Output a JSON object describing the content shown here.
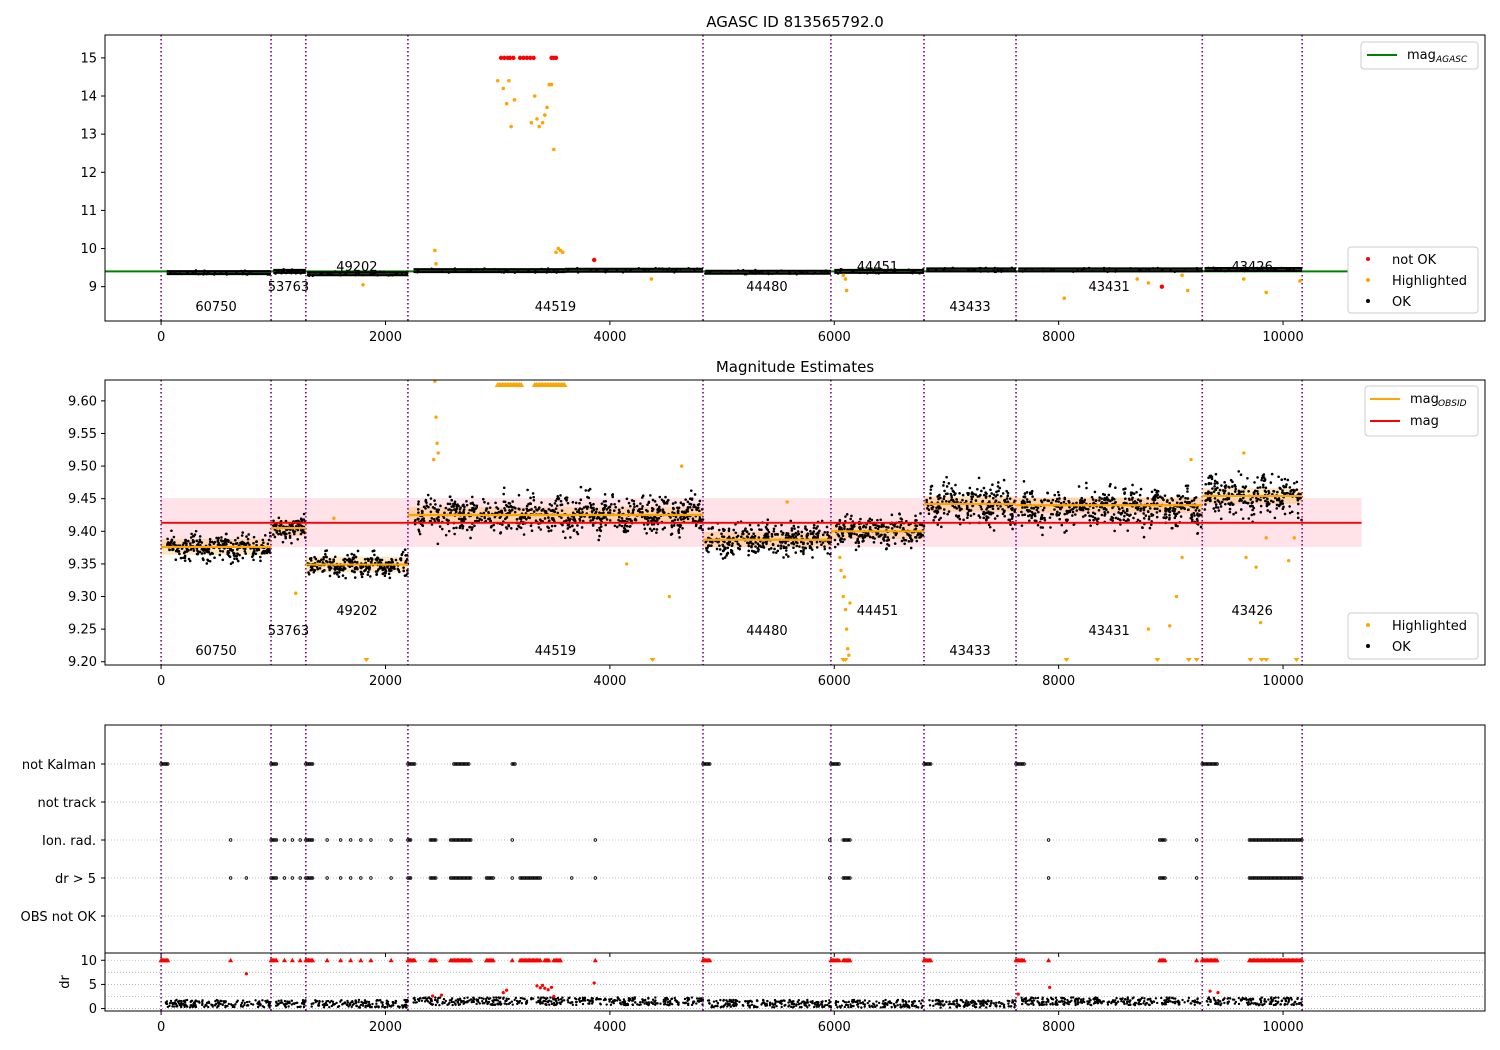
{
  "colors": {
    "obs_line": "#800080",
    "agasc_line": "#008000",
    "not_ok": "#ff0000",
    "highlighted": "#ffa500",
    "ok": "#000000",
    "mag_line": "#ff0000",
    "mag_band": "#ffc0cb",
    "mag_obsid": "#ffa500",
    "grid": "#b0b0b0"
  },
  "obs_boundaries": [
    0,
    980,
    1290,
    2200,
    4830,
    5970,
    6800,
    7620,
    9280,
    10170
  ],
  "obsids": [
    {
      "id": "60750",
      "x": 490,
      "row": 2
    },
    {
      "id": "53763",
      "x": 1135,
      "row": 1
    },
    {
      "id": "49202",
      "x": 1745,
      "row": 0
    },
    {
      "id": "44519",
      "x": 3515,
      "row": 2
    },
    {
      "id": "44480",
      "x": 5400,
      "row": 1
    },
    {
      "id": "44451",
      "x": 6385,
      "row": 0
    },
    {
      "id": "43433",
      "x": 7210,
      "row": 2
    },
    {
      "id": "43431",
      "x": 8450,
      "row": 1
    },
    {
      "id": "43426",
      "x": 9725,
      "row": 0
    }
  ],
  "chart_data": [
    {
      "type": "scatter",
      "title": "AGASC ID 813565792.0",
      "xlim": [
        -500,
        11800
      ],
      "ylim": [
        8.1,
        15.6
      ],
      "xticks": [
        "0",
        "2000",
        "4000",
        "6000",
        "8000",
        "10000"
      ],
      "xtick_values": [
        0,
        2000,
        4000,
        6000,
        8000,
        10000
      ],
      "yticks": [
        "9",
        "10",
        "11",
        "12",
        "13",
        "14",
        "15"
      ],
      "ytick_values": [
        9,
        10,
        11,
        12,
        13,
        14,
        15
      ],
      "mag_agasc": 9.4,
      "legend_lines": [
        {
          "label": "mag",
          "sub": "AGASC",
          "color": "#008000"
        }
      ],
      "legend_markers": [
        {
          "label": "not OK",
          "color": "#ff0000"
        },
        {
          "label": "Highlighted",
          "color": "#ffa500"
        },
        {
          "label": "OK",
          "color": "#000000"
        }
      ],
      "segments": [
        {
          "x0": 50,
          "x1": 980,
          "y": 9.37
        },
        {
          "x0": 1000,
          "x1": 1290,
          "y": 9.4
        },
        {
          "x0": 1300,
          "x1": 2200,
          "y": 9.34
        },
        {
          "x0": 2250,
          "x1": 3600,
          "y": 9.42
        },
        {
          "x0": 3600,
          "x1": 4830,
          "y": 9.43
        },
        {
          "x0": 4850,
          "x1": 5970,
          "y": 9.38
        },
        {
          "x0": 6000,
          "x1": 6800,
          "y": 9.4
        },
        {
          "x0": 6820,
          "x1": 7620,
          "y": 9.44
        },
        {
          "x0": 7640,
          "x1": 9280,
          "y": 9.44
        },
        {
          "x0": 9300,
          "x1": 10170,
          "y": 9.45
        }
      ],
      "highlighted_points": [
        [
          3000,
          14.4
        ],
        [
          3050,
          14.2
        ],
        [
          3080,
          13.8
        ],
        [
          3100,
          14.4
        ],
        [
          3120,
          13.2
        ],
        [
          3150,
          13.9
        ],
        [
          3300,
          13.3
        ],
        [
          3330,
          14.0
        ],
        [
          3350,
          13.4
        ],
        [
          3370,
          13.2
        ],
        [
          3400,
          13.3
        ],
        [
          3420,
          13.5
        ],
        [
          3440,
          13.7
        ],
        [
          3460,
          14.3
        ],
        [
          3480,
          14.3
        ],
        [
          3500,
          12.6
        ],
        [
          3520,
          9.9
        ],
        [
          3540,
          10.0
        ],
        [
          3560,
          9.95
        ],
        [
          3580,
          9.9
        ],
        [
          2440,
          9.95
        ],
        [
          2450,
          9.6
        ],
        [
          1800,
          9.05
        ],
        [
          6080,
          9.3
        ],
        [
          6100,
          9.2
        ],
        [
          6110,
          8.9
        ],
        [
          4370,
          9.2
        ],
        [
          8050,
          8.7
        ],
        [
          8700,
          9.2
        ],
        [
          8800,
          9.1
        ],
        [
          9100,
          9.3
        ],
        [
          9150,
          8.9
        ],
        [
          9650,
          9.2
        ],
        [
          9850,
          8.85
        ],
        [
          10150,
          9.15
        ]
      ],
      "notok_points": [
        [
          3030,
          15.0
        ],
        [
          3060,
          15.0
        ],
        [
          3090,
          15.0
        ],
        [
          3110,
          15.0
        ],
        [
          3140,
          15.0
        ],
        [
          3200,
          15.0
        ],
        [
          3230,
          15.0
        ],
        [
          3260,
          15.0
        ],
        [
          3290,
          15.0
        ],
        [
          3320,
          15.0
        ],
        [
          3480,
          15.0
        ],
        [
          3500,
          15.0
        ],
        [
          3520,
          15.0
        ],
        [
          3860,
          9.7
        ],
        [
          8920,
          9.0
        ]
      ]
    },
    {
      "type": "scatter",
      "title": "Magnitude Estimates",
      "xlim": [
        -500,
        11800
      ],
      "ylim": [
        9.195,
        9.632
      ],
      "xticks": [
        "0",
        "2000",
        "4000",
        "6000",
        "8000",
        "10000"
      ],
      "xtick_values": [
        0,
        2000,
        4000,
        6000,
        8000,
        10000
      ],
      "yticks": [
        "9.20",
        "9.25",
        "9.30",
        "9.35",
        "9.40",
        "9.45",
        "9.50",
        "9.55",
        "9.60"
      ],
      "ytick_values": [
        9.2,
        9.25,
        9.3,
        9.35,
        9.4,
        9.45,
        9.5,
        9.55,
        9.6
      ],
      "mag": 9.413,
      "mag_band": [
        9.376,
        9.451
      ],
      "mag_xrange": [
        0,
        10700
      ],
      "legend_lines": [
        {
          "label": "mag",
          "sub": "OBSID",
          "color": "#ffa500"
        },
        {
          "label": "mag",
          "sub": "",
          "color": "#ff0000"
        }
      ],
      "legend_markers": [
        {
          "label": "Highlighted",
          "color": "#ffa500"
        },
        {
          "label": "OK",
          "color": "#000000"
        }
      ],
      "segments": [
        {
          "x0": 0,
          "x1": 980,
          "y": 9.376
        },
        {
          "x0": 980,
          "x1": 1290,
          "y": 9.405
        },
        {
          "x0": 1290,
          "x1": 2200,
          "y": 9.349
        },
        {
          "x0": 2200,
          "x1": 4830,
          "y": 9.425
        },
        {
          "x0": 4830,
          "x1": 5970,
          "y": 9.387
        },
        {
          "x0": 5970,
          "x1": 6800,
          "y": 9.4
        },
        {
          "x0": 6800,
          "x1": 7620,
          "y": 9.442
        },
        {
          "x0": 7620,
          "x1": 9280,
          "y": 9.44
        },
        {
          "x0": 9280,
          "x1": 10170,
          "y": 9.454
        }
      ],
      "highlighted_points": [
        [
          2440,
          9.63
        ],
        [
          2450,
          9.575
        ],
        [
          2460,
          9.535
        ],
        [
          2470,
          9.52
        ],
        [
          2430,
          9.51
        ],
        [
          4150,
          9.35
        ],
        [
          4530,
          9.3
        ],
        [
          4640,
          9.5
        ],
        [
          5580,
          9.445
        ],
        [
          1200,
          9.305
        ],
        [
          1540,
          9.42
        ],
        [
          6050,
          9.36
        ],
        [
          6060,
          9.34
        ],
        [
          6080,
          9.3
        ],
        [
          6090,
          9.33
        ],
        [
          6100,
          9.28
        ],
        [
          6110,
          9.25
        ],
        [
          6120,
          9.22
        ],
        [
          6130,
          9.21
        ],
        [
          6140,
          9.29
        ],
        [
          8800,
          9.25
        ],
        [
          8990,
          9.255
        ],
        [
          9050,
          9.3
        ],
        [
          9100,
          9.36
        ],
        [
          9180,
          9.51
        ],
        [
          9650,
          9.52
        ],
        [
          9670,
          9.36
        ],
        [
          9760,
          9.345
        ],
        [
          9800,
          9.26
        ],
        [
          9850,
          9.39
        ],
        [
          10050,
          9.355
        ],
        [
          10100,
          9.39
        ]
      ],
      "bottom_arrows": [
        1830,
        4380,
        6080,
        6100,
        8070,
        8880,
        9160,
        9230,
        9710,
        9810,
        9850,
        10120
      ],
      "top_arrows_ranges": [
        [
          3000,
          3210
        ],
        [
          3330,
          3600
        ]
      ],
      "ok_bands": [
        {
          "x0": 50,
          "x1": 980,
          "c": 9.376,
          "amp": 0.02
        },
        {
          "x0": 1000,
          "x1": 1290,
          "c": 9.405,
          "amp": 0.018
        },
        {
          "x0": 1300,
          "x1": 2200,
          "c": 9.349,
          "amp": 0.018
        },
        {
          "x0": 2250,
          "x1": 4830,
          "c": 9.425,
          "amp": 0.03
        },
        {
          "x0": 4850,
          "x1": 5970,
          "c": 9.387,
          "amp": 0.025
        },
        {
          "x0": 6000,
          "x1": 6800,
          "c": 9.4,
          "amp": 0.022
        },
        {
          "x0": 6820,
          "x1": 7620,
          "c": 9.442,
          "amp": 0.035
        },
        {
          "x0": 7640,
          "x1": 9280,
          "c": 9.435,
          "amp": 0.03
        },
        {
          "x0": 9300,
          "x1": 10170,
          "c": 9.454,
          "amp": 0.03
        }
      ]
    },
    {
      "type": "scatter",
      "title": "",
      "xlim": [
        -500,
        11800
      ],
      "categories": [
        "not Kalman",
        "not track",
        "Ion. rad.",
        "dr > 5",
        "OBS not OK"
      ],
      "flag_ranges": {
        "not Kalman": [
          [
            0,
            60
          ],
          [
            980,
            1030
          ],
          [
            1290,
            1360
          ],
          [
            2200,
            2260
          ],
          [
            2610,
            2750
          ],
          [
            3130,
            3160
          ],
          [
            4830,
            4900
          ],
          [
            5970,
            6050
          ],
          [
            6800,
            6860
          ],
          [
            7620,
            7700
          ],
          [
            9280,
            9420
          ]
        ],
        "not track": [],
        "Ion. rad.": [
          [
            620,
            630
          ],
          [
            980,
            1030
          ],
          [
            1100,
            1110
          ],
          [
            1170,
            1180
          ],
          [
            1240,
            1250
          ],
          [
            1290,
            1360
          ],
          [
            1480,
            1490
          ],
          [
            1600,
            1610
          ],
          [
            1690,
            1700
          ],
          [
            1780,
            1790
          ],
          [
            1870,
            1880
          ],
          [
            2050,
            2060
          ],
          [
            2200,
            2230
          ],
          [
            2400,
            2450
          ],
          [
            2580,
            2770
          ],
          [
            3130,
            3140
          ],
          [
            3870,
            3880
          ],
          [
            5960,
            5970
          ],
          [
            6080,
            6140
          ],
          [
            7910,
            7920
          ],
          [
            8900,
            8950
          ],
          [
            9230,
            9240
          ],
          [
            9700,
            10170
          ]
        ],
        "dr > 5": [
          [
            620,
            630
          ],
          [
            760,
            770
          ],
          [
            980,
            1030
          ],
          [
            1100,
            1110
          ],
          [
            1170,
            1180
          ],
          [
            1240,
            1250
          ],
          [
            1290,
            1360
          ],
          [
            1480,
            1490
          ],
          [
            1600,
            1610
          ],
          [
            1690,
            1700
          ],
          [
            1780,
            1790
          ],
          [
            1870,
            1880
          ],
          [
            2050,
            2060
          ],
          [
            2200,
            2230
          ],
          [
            2400,
            2450
          ],
          [
            2580,
            2770
          ],
          [
            2900,
            2960
          ],
          [
            3130,
            3140
          ],
          [
            3200,
            3380
          ],
          [
            3660,
            3670
          ],
          [
            3870,
            3880
          ],
          [
            5960,
            5970
          ],
          [
            6080,
            6140
          ],
          [
            7910,
            7920
          ],
          [
            8900,
            8950
          ],
          [
            9230,
            9240
          ],
          [
            9700,
            10170
          ]
        ],
        "OBS not OK": []
      }
    },
    {
      "type": "scatter",
      "title": "",
      "xlim": [
        -500,
        11800
      ],
      "ylim": [
        -0.5,
        11.5
      ],
      "ylabel": "dr",
      "xticks": [
        "0",
        "2000",
        "4000",
        "6000",
        "8000",
        "10000"
      ],
      "xtick_values": [
        0,
        2000,
        4000,
        6000,
        8000,
        10000
      ],
      "yticks": [
        "0",
        "5",
        "10"
      ],
      "ytick_values": [
        0,
        5,
        10
      ],
      "dr_clip": 10,
      "notok_points": [
        [
          760,
          7.2
        ],
        [
          2420,
          2.6
        ],
        [
          2500,
          2.8
        ],
        [
          3050,
          3.3
        ],
        [
          3080,
          3.8
        ],
        [
          3350,
          4.7
        ],
        [
          3380,
          4.3
        ],
        [
          3400,
          4.8
        ],
        [
          3420,
          4.2
        ],
        [
          3450,
          3.9
        ],
        [
          3480,
          4.4
        ],
        [
          3500,
          2.5
        ],
        [
          3860,
          5.3
        ],
        [
          7640,
          3.0
        ],
        [
          7920,
          4.4
        ],
        [
          9350,
          3.6
        ],
        [
          9420,
          3.3
        ]
      ],
      "clip_ranges": [
        [
          0,
          60
        ],
        [
          620,
          630
        ],
        [
          980,
          1030
        ],
        [
          1100,
          1110
        ],
        [
          1170,
          1180
        ],
        [
          1240,
          1250
        ],
        [
          1290,
          1360
        ],
        [
          1480,
          1490
        ],
        [
          1600,
          1610
        ],
        [
          1690,
          1700
        ],
        [
          1780,
          1790
        ],
        [
          1870,
          1880
        ],
        [
          2050,
          2060
        ],
        [
          2200,
          2260
        ],
        [
          2400,
          2450
        ],
        [
          2580,
          2770
        ],
        [
          2900,
          2960
        ],
        [
          3130,
          3140
        ],
        [
          3200,
          3380
        ],
        [
          3420,
          3460
        ],
        [
          3500,
          3560
        ],
        [
          3870,
          3880
        ],
        [
          4830,
          4900
        ],
        [
          5970,
          6050
        ],
        [
          6080,
          6140
        ],
        [
          6800,
          6860
        ],
        [
          7620,
          7700
        ],
        [
          7910,
          7920
        ],
        [
          8900,
          8950
        ],
        [
          9230,
          9240
        ],
        [
          9280,
          9420
        ],
        [
          9700,
          10170
        ]
      ]
    }
  ]
}
